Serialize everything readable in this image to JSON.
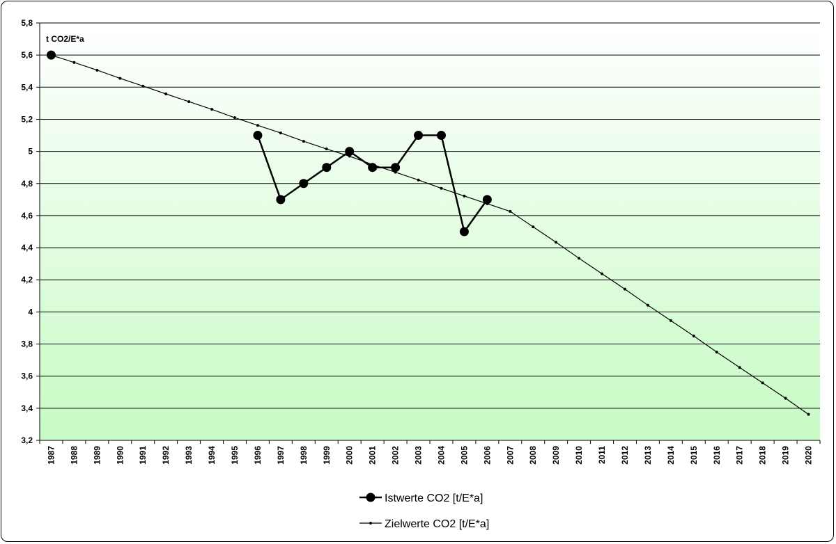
{
  "chart_data": {
    "type": "line",
    "title": "",
    "unit_label": "t CO2/E*a",
    "xlabel": "",
    "ylabel": "",
    "ylim": [
      3.2,
      5.8
    ],
    "y_ticks": [
      3.2,
      3.4,
      3.6,
      3.8,
      4,
      4.2,
      4.4,
      4.6,
      4.8,
      5,
      5.2,
      5.4,
      5.6,
      5.8
    ],
    "y_tick_labels": [
      "3,2",
      "3,4",
      "3,6",
      "3,8",
      "4",
      "4,2",
      "4,4",
      "4,6",
      "4,8",
      "5",
      "5,2",
      "5,4",
      "5,6",
      "5,8"
    ],
    "categories": [
      "1987",
      "1988",
      "1989",
      "1990",
      "1991",
      "1992",
      "1993",
      "1994",
      "1995",
      "1996",
      "1997",
      "1998",
      "1999",
      "2000",
      "2001",
      "2002",
      "2003",
      "2004",
      "2005",
      "2006",
      "2007",
      "2008",
      "2009",
      "2010",
      "2011",
      "2012",
      "2013",
      "2014",
      "2015",
      "2016",
      "2017",
      "2018",
      "2019",
      "2020"
    ],
    "grid": true,
    "legend_position": "bottom",
    "background": "gradient white to light green",
    "series": [
      {
        "name": "Istwerte CO2 [t/E*a]",
        "color": "#000000",
        "marker": "large-circle",
        "values": [
          5.6,
          null,
          null,
          null,
          null,
          null,
          null,
          null,
          null,
          5.1,
          4.7,
          4.8,
          4.9,
          5.0,
          4.9,
          4.9,
          5.1,
          5.1,
          4.5,
          4.7,
          null,
          null,
          null,
          null,
          null,
          null,
          null,
          null,
          null,
          null,
          null,
          null,
          null,
          null
        ],
        "connect_gaps": false
      },
      {
        "name": "Zielwerte CO2 [t/E*a]",
        "color": "#000000",
        "marker": "small-dot",
        "values": [
          5.6,
          5.554,
          5.506,
          5.455,
          5.407,
          5.358,
          5.31,
          5.262,
          5.21,
          5.162,
          5.115,
          5.063,
          5.015,
          4.97,
          4.918,
          4.87,
          4.822,
          4.77,
          4.722,
          4.674,
          4.626,
          4.53,
          4.434,
          4.334,
          4.238,
          4.142,
          4.042,
          3.946,
          3.85,
          3.75,
          3.654,
          3.558,
          3.462,
          3.362
        ]
      }
    ]
  }
}
